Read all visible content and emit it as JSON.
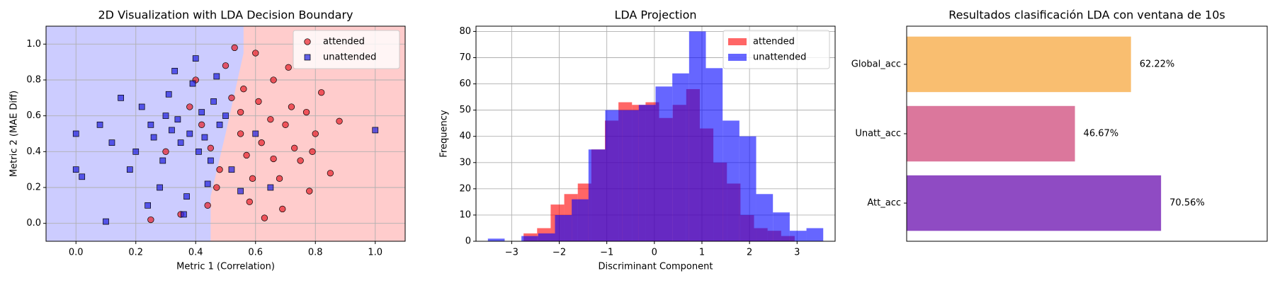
{
  "chart_data": [
    {
      "type": "scatter",
      "title": "2D Visualization with LDA Decision Boundary",
      "xlabel": "Metric 1 (Correlation)",
      "ylabel": "Metric 2 (MAE Diff)",
      "xlim": [
        -0.1,
        1.1
      ],
      "ylim": [
        -0.1,
        1.1
      ],
      "xticks": [
        {
          "value": 0,
          "label": "0.0"
        },
        {
          "value": 0.2,
          "label": "0.2"
        },
        {
          "value": 0.4,
          "label": "0.4"
        },
        {
          "value": 0.6,
          "label": "0.6"
        },
        {
          "value": 0.8,
          "label": "0.8"
        },
        {
          "value": 1,
          "label": "1.0"
        }
      ],
      "yticks": [
        {
          "value": 0,
          "label": "0.0"
        },
        {
          "value": 0.2,
          "label": "0.2"
        },
        {
          "value": 0.4,
          "label": "0.4"
        },
        {
          "value": 0.6,
          "label": "0.6"
        },
        {
          "value": 0.8,
          "label": "0.8"
        },
        {
          "value": 1,
          "label": "1.0"
        }
      ],
      "grid": true,
      "legend": "upper right",
      "decision_boundary": {
        "x": [
          0.45,
          0.45,
          0.5,
          0.56,
          0.56
        ],
        "y": [
          -0.1,
          0.15,
          0.5,
          0.95,
          1.1
        ],
        "left_color": "#ccccff",
        "right_color": "#ffcccc"
      },
      "series": [
        {
          "name": "attended",
          "color": "#e8202a",
          "marker": "circle",
          "x": [
            0.55,
            0.62,
            0.48,
            0.7,
            0.66,
            0.58,
            0.75,
            0.42,
            0.6,
            0.8,
            0.52,
            0.68,
            0.45,
            0.72,
            0.88,
            0.35,
            0.5,
            0.63,
            0.78,
            0.57,
            0.4,
            0.82,
            0.65,
            0.47,
            0.73,
            0.55,
            0.85,
            0.38,
            0.61,
            0.69,
            0.53,
            0.77,
            0.3,
            0.59,
            0.66,
            0.44,
            0.71,
            0.56,
            0.79,
            0.25
          ],
          "y": [
            0.62,
            0.45,
            0.3,
            0.55,
            0.8,
            0.12,
            0.35,
            0.55,
            0.95,
            0.5,
            0.7,
            0.25,
            0.42,
            0.65,
            0.57,
            0.05,
            0.88,
            0.03,
            0.18,
            0.38,
            0.8,
            0.73,
            0.58,
            0.2,
            0.42,
            0.5,
            0.28,
            0.65,
            0.68,
            0.08,
            0.98,
            0.62,
            0.4,
            0.25,
            0.36,
            0.1,
            0.87,
            0.75,
            0.4,
            0.02
          ]
        },
        {
          "name": "unattended",
          "color": "#2020e0",
          "marker": "square",
          "x": [
            0.0,
            0.0,
            0.02,
            0.1,
            0.15,
            0.2,
            0.25,
            0.3,
            0.35,
            0.38,
            0.42,
            0.28,
            0.33,
            0.45,
            0.22,
            0.4,
            0.36,
            0.18,
            0.48,
            0.31,
            0.26,
            0.44,
            0.12,
            0.39,
            0.5,
            0.29,
            0.34,
            0.43,
            0.55,
            0.6,
            0.08,
            0.37,
            0.47,
            0.24,
            0.41,
            0.52,
            0.65,
            1.0,
            0.32,
            0.46
          ],
          "y": [
            0.5,
            0.3,
            0.26,
            0.01,
            0.7,
            0.4,
            0.55,
            0.6,
            0.45,
            0.5,
            0.62,
            0.2,
            0.85,
            0.35,
            0.65,
            0.92,
            0.05,
            0.3,
            0.55,
            0.72,
            0.48,
            0.22,
            0.45,
            0.78,
            0.6,
            0.35,
            0.58,
            0.48,
            0.18,
            0.5,
            0.55,
            0.15,
            0.82,
            0.1,
            0.4,
            0.3,
            0.2,
            0.52,
            0.52,
            0.68
          ]
        }
      ]
    },
    {
      "type": "histogram",
      "title": "LDA Projection",
      "xlabel": "Discriminant Component",
      "ylabel": "Frequency",
      "xlim": [
        -3.75,
        3.8
      ],
      "ylim": [
        0,
        82
      ],
      "xticks": [
        {
          "value": -3,
          "label": "−3"
        },
        {
          "value": -2,
          "label": "−2"
        },
        {
          "value": -1,
          "label": "−1"
        },
        0,
        1,
        2,
        3
      ],
      "yticks": [
        0,
        10,
        20,
        30,
        40,
        50,
        60,
        70,
        80
      ],
      "grid": true,
      "legend": "upper right",
      "opacity": 0.6,
      "series": [
        {
          "name": "attended",
          "color": "#ff0000",
          "bins": [
            -2.75,
            -2.465,
            -2.18,
            -1.895,
            -1.61,
            -1.325,
            -1.04,
            -0.755,
            -0.47,
            -0.185,
            0.1,
            0.385,
            0.67,
            0.955,
            1.24,
            1.525,
            1.81,
            2.095,
            2.38,
            2.665,
            2.95
          ],
          "values": [
            3,
            5,
            14,
            18,
            22,
            35,
            46,
            53,
            52,
            53,
            47,
            52,
            58,
            43,
            30,
            22,
            10,
            5,
            4,
            2
          ]
        },
        {
          "name": "unattended",
          "color": "#0000ff",
          "bins": [
            -3.5,
            -3.1475,
            -2.795,
            -2.4425,
            -2.09,
            -1.7375,
            -1.385,
            -1.0325,
            -0.68,
            -0.3275,
            0.025,
            0.3775,
            0.73,
            1.0825,
            1.435,
            1.7875,
            2.14,
            2.4925,
            2.845,
            3.1975,
            3.55
          ],
          "values": [
            1,
            0,
            2,
            3,
            10,
            16,
            35,
            50,
            50,
            52,
            59,
            64,
            80,
            66,
            46,
            40,
            18,
            11,
            4,
            5
          ]
        }
      ]
    },
    {
      "type": "barh",
      "title": "Resultados clasificación LDA con ventana de 10s",
      "categories": [
        "Global_acc",
        "Unatt_acc",
        "Att_acc"
      ],
      "values": [
        62.22,
        46.67,
        70.56
      ],
      "value_labels": [
        "62.22%",
        "46.67%",
        "70.56%"
      ],
      "colors": [
        "#f9be70",
        "#db779c",
        "#8f4bc3"
      ],
      "xlim": [
        0,
        100
      ]
    }
  ]
}
